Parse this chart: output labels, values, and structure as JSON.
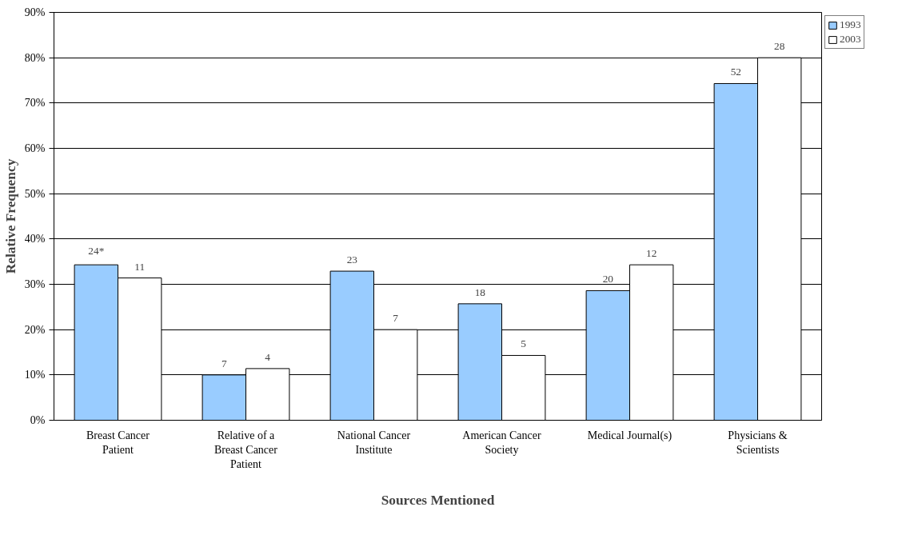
{
  "chart_data": {
    "type": "bar",
    "xlabel": "Sources Mentioned",
    "ylabel": "Relative Frequency",
    "categories": [
      "Breast Cancer Patient",
      "Relative of a Breast Cancer Patient",
      "National Cancer Institute",
      "American Cancer Society",
      "Medical Journal(s)",
      "Physicians & Scientists"
    ],
    "series": [
      {
        "name": "1993",
        "color": "#99ccff",
        "values": [
          34.3,
          10.0,
          32.9,
          25.7,
          28.6,
          74.3
        ]
      },
      {
        "name": "2003",
        "color": "#ffffff",
        "values": [
          31.4,
          11.4,
          20.0,
          14.3,
          34.3,
          80.0
        ]
      }
    ],
    "annotations": [
      "24*",
      "11",
      "7",
      "4",
      "23",
      "7",
      "18",
      "5",
      "20",
      "12",
      "52",
      "28"
    ],
    "ylim": [
      0,
      90
    ],
    "yticks": [
      {
        "value": 0,
        "label": "0%"
      },
      {
        "value": 10,
        "label": "10%"
      },
      {
        "value": 20,
        "label": "20%"
      },
      {
        "value": 30,
        "label": "30%"
      },
      {
        "value": 40,
        "label": "40%"
      },
      {
        "value": 50,
        "label": "50%"
      },
      {
        "value": 60,
        "label": "60%"
      },
      {
        "value": 70,
        "label": "70%"
      },
      {
        "value": 80,
        "label": "80%"
      },
      {
        "value": 90,
        "label": "90%"
      }
    ],
    "grid": "y",
    "legend": "top right"
  }
}
